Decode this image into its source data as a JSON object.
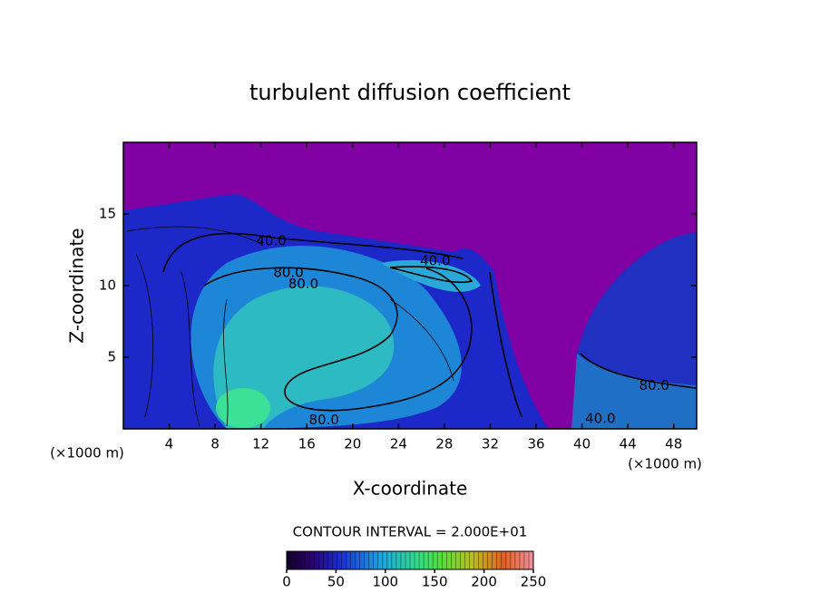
{
  "chart_data": {
    "type": "contour",
    "title": "turbulent diffusion coefficient",
    "xlabel": "X-coordinate",
    "ylabel": "Z-coordinate",
    "x_unit": "(×1000 m)",
    "y_unit": "(×1000 m)",
    "xlim": [
      0,
      50
    ],
    "xticks": [
      4,
      8,
      12,
      16,
      20,
      24,
      28,
      32,
      36,
      40,
      44,
      48
    ],
    "ylim": [
      0,
      20
    ],
    "yticks": [
      5,
      10,
      15
    ],
    "contour_interval": "CONTOUR INTERVAL = 2.000E+01",
    "colorbar": {
      "clim": [
        0,
        250
      ],
      "ticks": [
        0,
        50,
        100,
        150,
        200,
        250
      ]
    },
    "contour_labels": [
      {
        "x": 12.9,
        "y": 13.1,
        "value": 40,
        "label": "40.0"
      },
      {
        "x": 14.4,
        "y": 10.9,
        "value": 80,
        "label": "80.0"
      },
      {
        "x": 15.7,
        "y": 10.1,
        "value": 80,
        "label": "80.0"
      },
      {
        "x": 27.2,
        "y": 11.7,
        "value": 40,
        "label": "40.0"
      },
      {
        "x": 17.5,
        "y": 0.6,
        "value": 80,
        "label": "80.0"
      },
      {
        "x": 41.6,
        "y": 0.7,
        "value": 40,
        "label": "40.0"
      },
      {
        "x": 46.3,
        "y": 3.0,
        "value": 80,
        "label": "80.0"
      }
    ]
  }
}
